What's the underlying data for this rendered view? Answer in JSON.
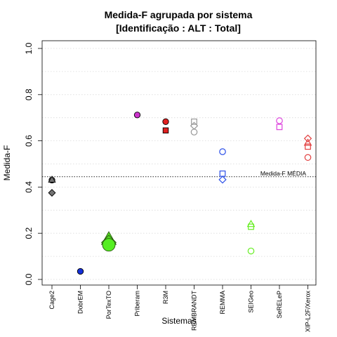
{
  "chart_data": {
    "type": "scatter",
    "title": "Medida-F agrupada por sistema",
    "subtitle": "[Identificação : ALT : Total]",
    "xlabel": "Sistemas",
    "ylabel": "Medida-F",
    "ylim": [
      0.0,
      1.0
    ],
    "yticks": [
      "0.0",
      "0.2",
      "0.4",
      "0.6",
      "0.8",
      "1.0"
    ],
    "ytick_values": [
      0.0,
      0.2,
      0.4,
      0.6,
      0.8,
      1.0
    ],
    "grid": "horizontal-dotted",
    "categories": [
      "Cage2",
      "DobrEM",
      "PorTexTO",
      "Priberam",
      "R3M",
      "REMBRANDT",
      "REMMA",
      "SEIGeo",
      "SeRELeP",
      "XIP-L2F/Xerox"
    ],
    "reference_line": {
      "label": "Medida-F MÉDIA",
      "value": 0.445,
      "color": "#555555"
    },
    "points": [
      {
        "category": "Cage2",
        "value": 0.43,
        "shape": "circle",
        "color": "#737373",
        "filled": true
      },
      {
        "category": "Cage2",
        "value": 0.432,
        "shape": "triangle",
        "color": "#737373",
        "filled": true
      },
      {
        "category": "Cage2",
        "value": 0.375,
        "shape": "diamond",
        "color": "#737373",
        "filled": true
      },
      {
        "category": "DobrEM",
        "value": 0.035,
        "shape": "circle",
        "color": "#1530d8",
        "filled": true
      },
      {
        "category": "PorTexTO",
        "value": 0.175,
        "shape": "triangle",
        "color": "#55dd22",
        "filled": true,
        "big": true
      },
      {
        "category": "PorTexTO",
        "value": 0.16,
        "shape": "diamond",
        "color": "#55dd22",
        "filled": true,
        "big": true
      },
      {
        "category": "PorTexTO",
        "value": 0.15,
        "shape": "circle",
        "color": "#55ee22",
        "filled": true,
        "big": true
      },
      {
        "category": "Priberam",
        "value": 0.712,
        "shape": "circle",
        "color": "#cc33cc",
        "filled": true
      },
      {
        "category": "R3M",
        "value": 0.683,
        "shape": "circle",
        "color": "#e02020",
        "filled": true
      },
      {
        "category": "R3M",
        "value": 0.645,
        "shape": "square",
        "color": "#e02020",
        "filled": true
      },
      {
        "category": "REMBRANDT",
        "value": 0.683,
        "shape": "square",
        "color": "#999999",
        "filled": false
      },
      {
        "category": "REMBRANDT",
        "value": 0.665,
        "shape": "diamond",
        "color": "#999999",
        "filled": false
      },
      {
        "category": "REMBRANDT",
        "value": 0.638,
        "shape": "circle",
        "color": "#999999",
        "filled": false
      },
      {
        "category": "REMMA",
        "value": 0.553,
        "shape": "circle",
        "color": "#2b4fe8",
        "filled": false
      },
      {
        "category": "REMMA",
        "value": 0.458,
        "shape": "square",
        "color": "#2b4fe8",
        "filled": false
      },
      {
        "category": "REMMA",
        "value": 0.432,
        "shape": "diamond",
        "color": "#2b4fe8",
        "filled": false
      },
      {
        "category": "SEIGeo",
        "value": 0.24,
        "shape": "triangle",
        "color": "#66ee22",
        "filled": false
      },
      {
        "category": "SEIGeo",
        "value": 0.228,
        "shape": "square",
        "color": "#66ee22",
        "filled": false
      },
      {
        "category": "SEIGeo",
        "value": 0.123,
        "shape": "circle",
        "color": "#66ee22",
        "filled": false
      },
      {
        "category": "SeRELeP",
        "value": 0.687,
        "shape": "circle",
        "color": "#dd44dd",
        "filled": false
      },
      {
        "category": "SeRELeP",
        "value": 0.66,
        "shape": "square",
        "color": "#dd44dd",
        "filled": false
      },
      {
        "category": "XIP-L2F/Xerox",
        "value": 0.61,
        "shape": "diamond",
        "color": "#e24040",
        "filled": false
      },
      {
        "category": "XIP-L2F/Xerox",
        "value": 0.592,
        "shape": "triangle",
        "color": "#e24040",
        "filled": false
      },
      {
        "category": "XIP-L2F/Xerox",
        "value": 0.575,
        "shape": "square",
        "color": "#e24040",
        "filled": false
      },
      {
        "category": "XIP-L2F/Xerox",
        "value": 0.528,
        "shape": "circle",
        "color": "#e24040",
        "filled": false
      }
    ]
  }
}
